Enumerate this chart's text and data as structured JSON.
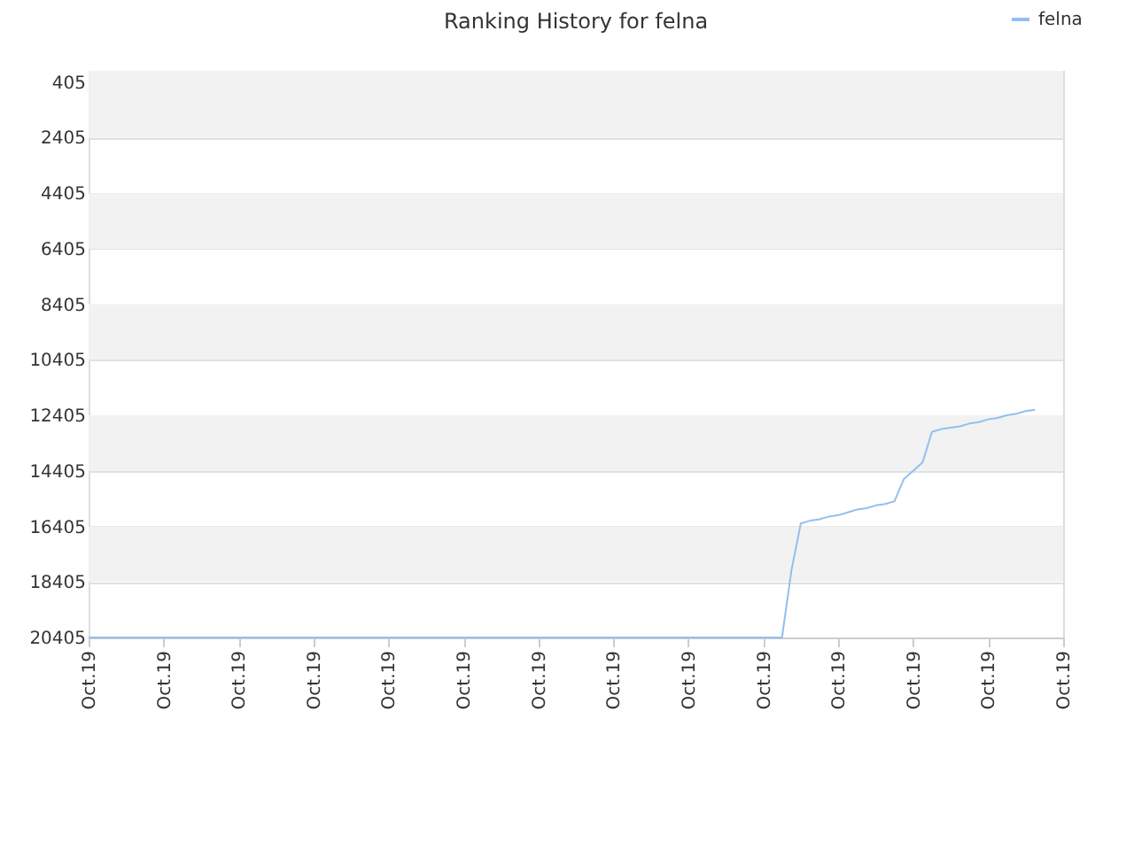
{
  "chart_data": {
    "type": "line",
    "title": "Ranking History for felna",
    "categories": [
      "Oct.19",
      null,
      null,
      null,
      null,
      null,
      null,
      null,
      "Oct.19",
      null,
      null,
      null,
      null,
      null,
      null,
      null,
      "Oct.19",
      null,
      null,
      null,
      null,
      null,
      null,
      null,
      "Oct.19",
      null,
      null,
      null,
      null,
      null,
      null,
      null,
      "Oct.19",
      null,
      null,
      null,
      null,
      null,
      null,
      null,
      "Oct.19",
      null,
      null,
      null,
      null,
      null,
      null,
      null,
      "Oct.19",
      null,
      null,
      null,
      null,
      null,
      null,
      null,
      "Oct.19",
      null,
      null,
      null,
      null,
      null,
      null,
      null,
      "Oct.19",
      null,
      null,
      null,
      null,
      null,
      null,
      null,
      "Oct.19",
      null,
      null,
      null,
      null,
      null,
      null,
      null,
      "Oct.19",
      null,
      null,
      null,
      null,
      null,
      null,
      null,
      "Oct.19",
      null,
      null,
      null,
      null,
      null,
      null,
      null,
      "Oct.19",
      null,
      null,
      null,
      null,
      null,
      null,
      null,
      "Oct.19"
    ],
    "series": [
      {
        "name": "felna",
        "color": "#90c0f0",
        "values": [
          20405,
          20405,
          20405,
          20405,
          20405,
          20405,
          20405,
          20405,
          20405,
          20405,
          20405,
          20405,
          20405,
          20405,
          20405,
          20405,
          20405,
          20405,
          20405,
          20405,
          20405,
          20405,
          20405,
          20405,
          20405,
          20405,
          20405,
          20405,
          20405,
          20405,
          20405,
          20405,
          20405,
          20405,
          20405,
          20405,
          20405,
          20405,
          20405,
          20405,
          20405,
          20405,
          20405,
          20405,
          20405,
          20405,
          20405,
          20405,
          20405,
          20405,
          20405,
          20405,
          20405,
          20405,
          20405,
          20405,
          20405,
          20405,
          20405,
          20405,
          20405,
          20405,
          20405,
          20405,
          20405,
          20405,
          20405,
          20405,
          20405,
          20405,
          20405,
          20405,
          20405,
          20405,
          20405,
          18000,
          16300,
          16200,
          16150,
          16050,
          16000,
          15900,
          15800,
          15750,
          15650,
          15600,
          15500,
          14700,
          14400,
          14100,
          13000,
          12900,
          12850,
          12800,
          12700,
          12650,
          12550,
          12500,
          12400,
          12350,
          12250,
          12200,
          null,
          null,
          null
        ]
      }
    ],
    "ylim": [
      20405,
      0
    ],
    "yticks": [
      405,
      2405,
      4405,
      6405,
      8405,
      10405,
      12405,
      14405,
      16405,
      18405,
      20405
    ],
    "bands": [
      {
        "axis": "y",
        "from": 0,
        "to": 2405,
        "color": "#f2f2f2"
      },
      {
        "axis": "y",
        "from": 4405,
        "to": 6405,
        "color": "#f2f2f2"
      },
      {
        "axis": "y",
        "from": 8405,
        "to": 10405,
        "color": "#f2f2f2"
      },
      {
        "axis": "y",
        "from": 12405,
        "to": 14405,
        "color": "#f2f2f2"
      },
      {
        "axis": "y",
        "from": 16405,
        "to": 18405,
        "color": "#f2f2f2"
      }
    ],
    "grid": "y",
    "legend": "top right",
    "marker": "none",
    "line_style": "solid"
  }
}
